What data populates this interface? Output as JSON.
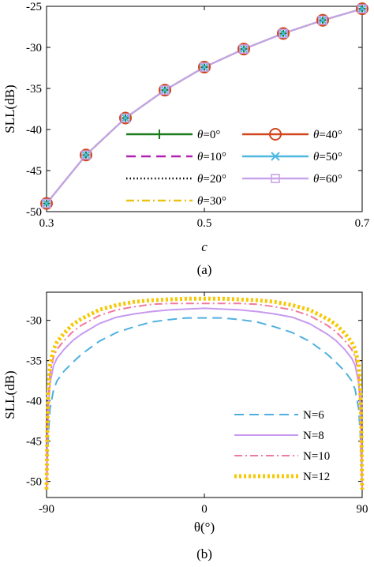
{
  "chart_data": [
    {
      "type": "line",
      "caption": "(a)",
      "xlabel": "c",
      "ylabel": "SLL(dB)",
      "xlim": [
        0.3,
        0.7
      ],
      "ylim": [
        -50,
        -25
      ],
      "x_ticks": [
        "0.3",
        "0.5",
        "0.7"
      ],
      "y_ticks": [
        "-50",
        "-45",
        "-40",
        "-35",
        "-30",
        "-25"
      ],
      "grid": false,
      "legend_position": "bottom-right, two columns",
      "x": [
        0.3,
        0.35,
        0.4,
        0.45,
        0.5,
        0.55,
        0.6,
        0.65,
        0.7
      ],
      "series": [
        {
          "name": "θ=0°",
          "color": "#1a7a1a",
          "dash": "solid",
          "marker": "plus",
          "values": [
            -49.0,
            -43.1,
            -38.6,
            -35.2,
            -32.4,
            -30.2,
            -28.3,
            -26.7,
            -25.3
          ]
        },
        {
          "name": "θ=10°",
          "color": "#b020b0",
          "dash": "dashed",
          "marker": "none",
          "values": [
            -49.0,
            -43.1,
            -38.6,
            -35.2,
            -32.4,
            -30.2,
            -28.3,
            -26.7,
            -25.3
          ]
        },
        {
          "name": "θ=20°",
          "color": "#000000",
          "dash": "dotted",
          "marker": "none",
          "values": [
            -49.0,
            -43.1,
            -38.6,
            -35.2,
            -32.4,
            -30.2,
            -28.3,
            -26.7,
            -25.3
          ]
        },
        {
          "name": "θ=30°",
          "color": "#ecc21a",
          "dash": "dashdot",
          "marker": "none",
          "values": [
            -49.0,
            -43.1,
            -38.6,
            -35.2,
            -32.4,
            -30.2,
            -28.3,
            -26.7,
            -25.3
          ]
        },
        {
          "name": "θ=40°",
          "color": "#d0461f",
          "dash": "solid",
          "marker": "circle",
          "values": [
            -49.0,
            -43.1,
            -38.6,
            -35.2,
            -32.4,
            -30.2,
            -28.3,
            -26.7,
            -25.3
          ]
        },
        {
          "name": "θ=50°",
          "color": "#4fb8e0",
          "dash": "solid",
          "marker": "x",
          "values": [
            -49.0,
            -43.1,
            -38.6,
            -35.2,
            -32.4,
            -30.2,
            -28.3,
            -26.7,
            -25.3
          ]
        },
        {
          "name": "θ=60°",
          "color": "#c9a4ea",
          "dash": "solid",
          "marker": "square",
          "values": [
            -49.0,
            -43.1,
            -38.6,
            -35.2,
            -32.4,
            -30.2,
            -28.3,
            -26.7,
            -25.3
          ]
        }
      ]
    },
    {
      "type": "line",
      "caption": "(b)",
      "xlabel": "θ(°)",
      "ylabel": "SLL(dB)",
      "xlim": [
        -90,
        90
      ],
      "ylim": [
        -52,
        -26.5
      ],
      "x_ticks": [
        "-90",
        "0",
        "90"
      ],
      "y_ticks": [
        "-50",
        "-45",
        "-40",
        "-35",
        "-30"
      ],
      "grid": false,
      "legend_position": "bottom-right",
      "x": [
        -90,
        -89.5,
        -89,
        -88,
        -86,
        -84,
        -80,
        -75,
        -70,
        -60,
        -50,
        -40,
        -30,
        -20,
        -10,
        0,
        10,
        20,
        30,
        40,
        50,
        60,
        70,
        75,
        80,
        84,
        86,
        88,
        89,
        89.5,
        90
      ],
      "series": [
        {
          "name": "N=6",
          "color": "#4fb0e0",
          "dash": "dashed",
          "values": [
            -51.0,
            -47.0,
            -44.5,
            -41.0,
            -38.6,
            -37.5,
            -36.3,
            -35.2,
            -34.2,
            -32.6,
            -31.5,
            -30.8,
            -30.2,
            -29.9,
            -29.7,
            -29.7,
            -29.7,
            -29.9,
            -30.2,
            -30.8,
            -31.5,
            -32.6,
            -34.2,
            -35.2,
            -36.3,
            -37.5,
            -38.6,
            -41.0,
            -44.5,
            -47.0,
            -51.0
          ]
        },
        {
          "name": "N=8",
          "color": "#c79af0",
          "dash": "solid",
          "values": [
            -51.0,
            -45.0,
            -41.0,
            -37.8,
            -35.6,
            -34.7,
            -33.6,
            -32.5,
            -31.7,
            -30.4,
            -29.6,
            -29.2,
            -28.9,
            -28.7,
            -28.6,
            -28.5,
            -28.6,
            -28.7,
            -28.9,
            -29.2,
            -29.6,
            -30.4,
            -31.7,
            -32.5,
            -33.6,
            -34.7,
            -35.6,
            -37.8,
            -41.0,
            -45.0,
            -51.0
          ]
        },
        {
          "name": "N=10",
          "color": "#f07aa0",
          "dash": "dashdot",
          "values": [
            -51.0,
            -44.0,
            -40.0,
            -36.6,
            -34.5,
            -33.6,
            -32.5,
            -31.4,
            -30.6,
            -29.4,
            -28.7,
            -28.3,
            -28.0,
            -27.9,
            -27.9,
            -27.9,
            -27.9,
            -27.9,
            -28.0,
            -28.3,
            -28.7,
            -29.4,
            -30.6,
            -31.4,
            -32.5,
            -33.6,
            -34.5,
            -36.6,
            -40.0,
            -44.0,
            -51.0
          ]
        },
        {
          "name": "N=12",
          "color": "#f5c800",
          "dash": "dotted",
          "values": [
            -51.0,
            -43.0,
            -39.0,
            -35.5,
            -33.6,
            -32.7,
            -31.6,
            -30.5,
            -29.8,
            -28.7,
            -28.1,
            -27.7,
            -27.5,
            -27.4,
            -27.3,
            -27.3,
            -27.3,
            -27.4,
            -27.5,
            -27.7,
            -28.1,
            -28.7,
            -29.8,
            -30.5,
            -31.6,
            -32.7,
            -33.6,
            -35.5,
            -39.0,
            -43.0,
            -51.0
          ]
        }
      ]
    }
  ]
}
